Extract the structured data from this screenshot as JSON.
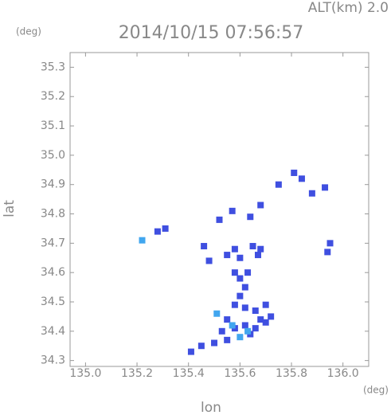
{
  "chart_data": {
    "type": "scatter",
    "title": "2014/10/15 07:56:57",
    "subtitle": "ALT(km)  2.0",
    "y_unit": "(deg)",
    "x_unit": "(deg)",
    "x_label": "lon",
    "y_label": "lat",
    "xlim": [
      134.94,
      136.1
    ],
    "ylim": [
      34.28,
      35.35
    ],
    "xticks": [
      {
        "value": 135,
        "label": "135.0"
      },
      135.2,
      135.4,
      135.6,
      135.8,
      {
        "value": 136,
        "label": "136.0"
      }
    ],
    "yticks": [
      34.3,
      34.4,
      34.5,
      34.6,
      34.7,
      34.8,
      34.9,
      {
        "value": 35,
        "label": "35.0"
      },
      35.1,
      35.2,
      35.3
    ],
    "series": [
      {
        "color": "#3f4fe0",
        "x": [
          135.28,
          135.31,
          135.46,
          135.48,
          135.55,
          135.58,
          135.6,
          135.65,
          135.67,
          135.68,
          135.58,
          135.6,
          135.62,
          135.6,
          135.63,
          135.58,
          135.62,
          135.66,
          135.7,
          135.72,
          135.68,
          135.55,
          135.58,
          135.62,
          135.66,
          135.55,
          135.5,
          135.45,
          135.41,
          135.64,
          135.57,
          135.68,
          135.75,
          135.81,
          135.84,
          135.88,
          135.93,
          135.95,
          135.94,
          135.52,
          135.7,
          135.64,
          135.53
        ],
        "values": [
          34.74,
          34.75,
          34.69,
          34.64,
          34.66,
          34.68,
          34.65,
          34.69,
          34.66,
          34.68,
          34.6,
          34.58,
          34.55,
          34.52,
          34.6,
          34.49,
          34.48,
          34.47,
          34.49,
          34.45,
          34.44,
          34.44,
          34.41,
          34.42,
          34.41,
          34.37,
          34.36,
          34.35,
          34.33,
          34.79,
          34.81,
          34.83,
          34.9,
          34.94,
          34.92,
          34.87,
          34.89,
          34.7,
          34.67,
          34.78,
          34.43,
          34.39,
          34.4
        ]
      },
      {
        "color": "#41a6ef",
        "x": [
          135.22,
          135.6,
          135.57,
          135.63,
          135.51
        ],
        "values": [
          34.71,
          34.38,
          34.42,
          34.4,
          34.46
        ]
      }
    ]
  }
}
